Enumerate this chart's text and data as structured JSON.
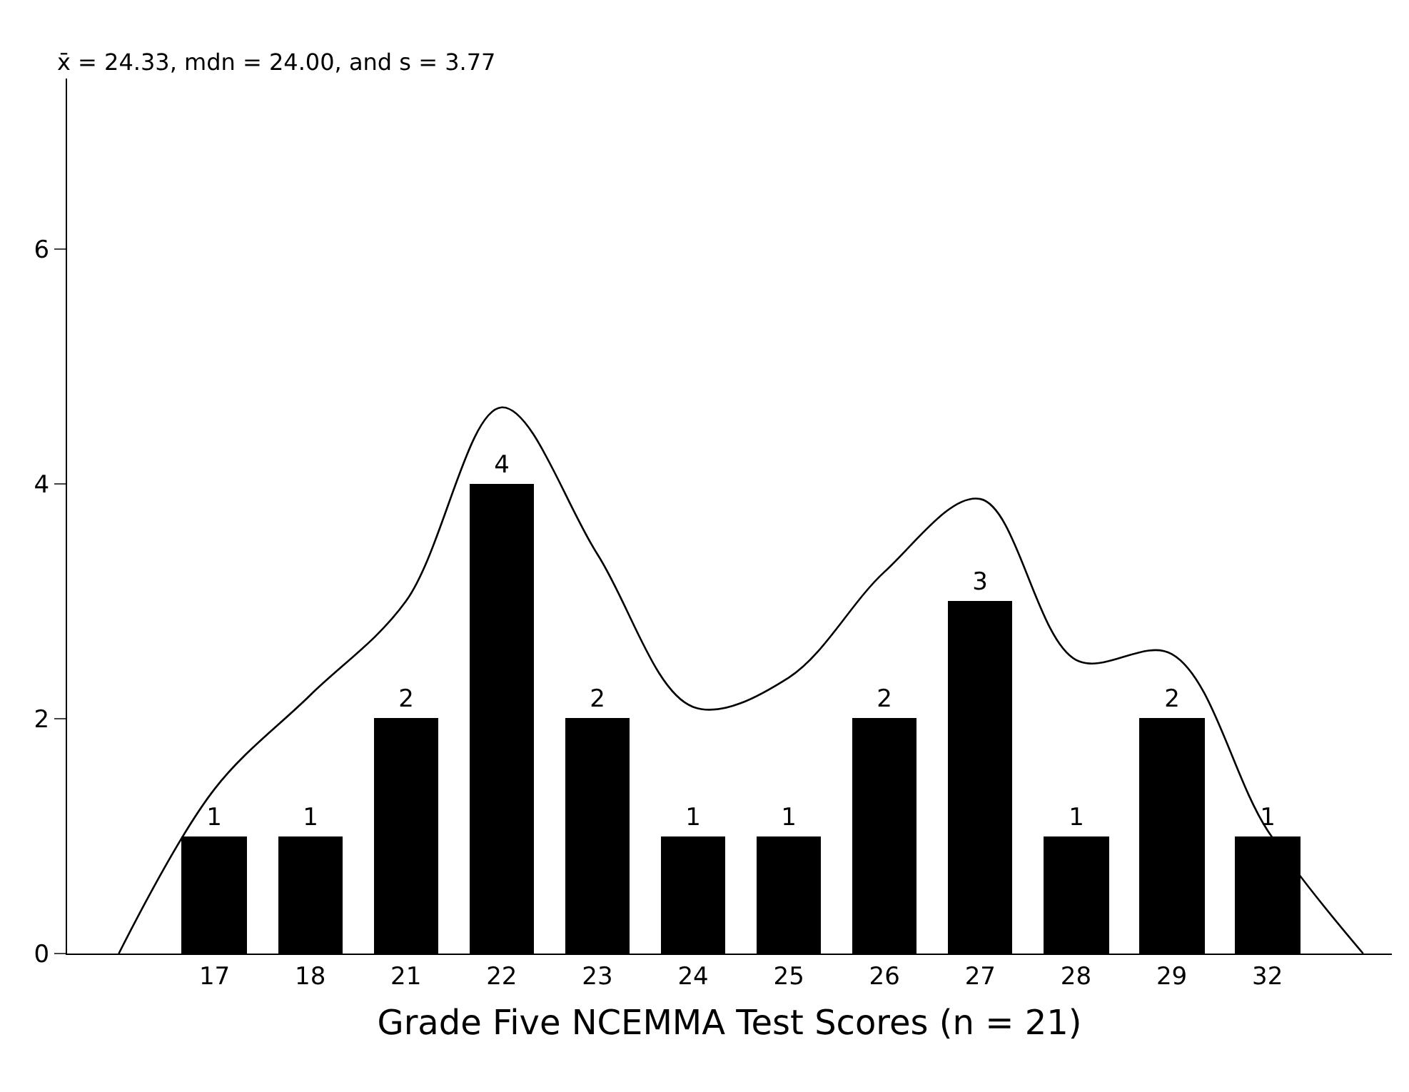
{
  "chart_data": {
    "type": "bar",
    "xlabel": "Grade Five NCEMMA Test Scores (n = 21)",
    "annotations": [
      "x̄ = 24.33, mdn = 24.00, and s = 3.77"
    ],
    "categories": [
      null,
      "17",
      "18",
      "21",
      "22",
      "23",
      "24",
      "25",
      "26",
      "27",
      "28",
      "29",
      "32",
      null
    ],
    "series": [
      {
        "color": "#000000",
        "values": [
          null,
          1,
          1,
          2,
          4,
          2,
          1,
          1,
          2,
          3,
          1,
          2,
          1,
          null
        ],
        "value_labels": [
          null,
          "1",
          "1",
          "2",
          "4",
          "2",
          "1",
          "1",
          "2",
          "3",
          "1",
          "2",
          "1",
          null
        ]
      },
      {
        "type": "line",
        "color": "#000000",
        "values": [
          0,
          1.4,
          2.2,
          3.0,
          4.65,
          3.4,
          2.1,
          2.35,
          3.25,
          3.87,
          2.5,
          2.55,
          1.05,
          0
        ]
      }
    ],
    "ylim": [
      0,
      7.45
    ],
    "yticks": [
      0,
      2,
      4,
      6
    ],
    "legend": false,
    "marker": "none",
    "line_style": "solid"
  }
}
